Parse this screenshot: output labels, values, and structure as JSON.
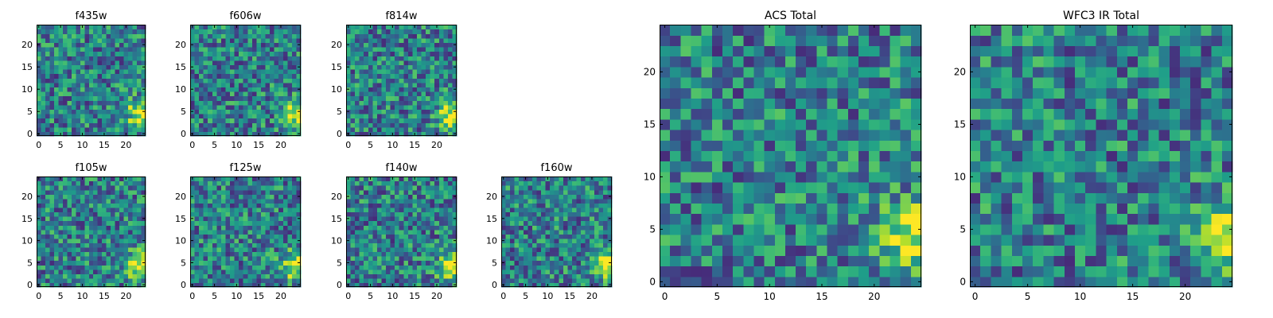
{
  "figure": {
    "colormap": "viridis",
    "background": "#ffffff",
    "grid": false
  },
  "chart_data": [
    {
      "type": "heatmap",
      "title": "f435w",
      "xlabel": "",
      "ylabel": "",
      "seed": 11,
      "hotspot": "bottom-right",
      "xlim": [
        0,
        24
      ],
      "ylim": [
        0,
        24
      ],
      "xticks": [
        0,
        5,
        10,
        15,
        20
      ],
      "yticks": [
        0,
        5,
        10,
        15,
        20
      ],
      "xtick_labels": [
        "0",
        "5",
        "10",
        "15",
        "20"
      ],
      "ytick_labels": [
        "0",
        "5",
        "10",
        "15",
        "20"
      ]
    },
    {
      "type": "heatmap",
      "title": "f606w",
      "xlabel": "",
      "ylabel": "",
      "seed": 23,
      "hotspot": "bottom-right",
      "xlim": [
        0,
        24
      ],
      "ylim": [
        0,
        24
      ],
      "xticks": [
        0,
        5,
        10,
        15,
        20
      ],
      "yticks": [
        0,
        5,
        10,
        15,
        20
      ],
      "xtick_labels": [
        "0",
        "5",
        "10",
        "15",
        "20"
      ],
      "ytick_labels": [
        "0",
        "5",
        "10",
        "15",
        "20"
      ]
    },
    {
      "type": "heatmap",
      "title": "f814w",
      "xlabel": "",
      "ylabel": "",
      "seed": 37,
      "hotspot": "bottom-right",
      "xlim": [
        0,
        24
      ],
      "ylim": [
        0,
        24
      ],
      "xticks": [
        0,
        5,
        10,
        15,
        20
      ],
      "yticks": [
        0,
        5,
        10,
        15,
        20
      ],
      "xtick_labels": [
        "0",
        "5",
        "10",
        "15",
        "20"
      ],
      "ytick_labels": [
        "0",
        "5",
        "10",
        "15",
        "20"
      ]
    },
    {
      "type": "heatmap",
      "title": "f105w",
      "xlabel": "",
      "ylabel": "",
      "seed": 41,
      "hotspot": "bottom-right",
      "xlim": [
        0,
        24
      ],
      "ylim": [
        0,
        24
      ],
      "xticks": [
        0,
        5,
        10,
        15,
        20
      ],
      "yticks": [
        0,
        5,
        10,
        15,
        20
      ],
      "xtick_labels": [
        "0",
        "5",
        "10",
        "15",
        "20"
      ],
      "ytick_labels": [
        "0",
        "5",
        "10",
        "15",
        "20"
      ]
    },
    {
      "type": "heatmap",
      "title": "f125w",
      "xlabel": "",
      "ylabel": "",
      "seed": 53,
      "hotspot": "bottom-right",
      "xlim": [
        0,
        24
      ],
      "ylim": [
        0,
        24
      ],
      "xticks": [
        0,
        5,
        10,
        15,
        20
      ],
      "yticks": [
        0,
        5,
        10,
        15,
        20
      ],
      "xtick_labels": [
        "0",
        "5",
        "10",
        "15",
        "20"
      ],
      "ytick_labels": [
        "0",
        "5",
        "10",
        "15",
        "20"
      ]
    },
    {
      "type": "heatmap",
      "title": "f140w",
      "xlabel": "",
      "ylabel": "",
      "seed": 67,
      "hotspot": "bottom-right",
      "xlim": [
        0,
        24
      ],
      "ylim": [
        0,
        24
      ],
      "xticks": [
        0,
        5,
        10,
        15,
        20
      ],
      "yticks": [
        0,
        5,
        10,
        15,
        20
      ],
      "xtick_labels": [
        "0",
        "5",
        "10",
        "15",
        "20"
      ],
      "ytick_labels": [
        "0",
        "5",
        "10",
        "15",
        "20"
      ]
    },
    {
      "type": "heatmap",
      "title": "f160w",
      "xlabel": "",
      "ylabel": "",
      "seed": 79,
      "hotspot": "bottom-right",
      "xlim": [
        0,
        24
      ],
      "ylim": [
        0,
        24
      ],
      "xticks": [
        0,
        5,
        10,
        15,
        20
      ],
      "yticks": [
        0,
        5,
        10,
        15,
        20
      ],
      "xtick_labels": [
        "0",
        "5",
        "10",
        "15",
        "20"
      ],
      "ytick_labels": [
        "0",
        "5",
        "10",
        "15",
        "20"
      ]
    },
    {
      "type": "heatmap",
      "title": "ACS Total",
      "xlabel": "",
      "ylabel": "",
      "seed": 97,
      "hotspot": "bottom-right",
      "xlim": [
        0,
        24
      ],
      "ylim": [
        0,
        24
      ],
      "xticks": [
        0,
        5,
        10,
        15,
        20
      ],
      "yticks": [
        0,
        5,
        10,
        15,
        20
      ],
      "xtick_labels": [
        "0",
        "5",
        "10",
        "15",
        "20"
      ],
      "ytick_labels": [
        "0",
        "5",
        "10",
        "15",
        "20"
      ]
    },
    {
      "type": "heatmap",
      "title": "WFC3 IR Total",
      "xlabel": "",
      "ylabel": "",
      "seed": 131,
      "hotspot": "bottom-right",
      "xlim": [
        0,
        24
      ],
      "ylim": [
        0,
        24
      ],
      "xticks": [
        0,
        5,
        10,
        15,
        20
      ],
      "yticks": [
        0,
        5,
        10,
        15,
        20
      ],
      "xtick_labels": [
        "0",
        "5",
        "10",
        "15",
        "20"
      ],
      "ytick_labels": [
        "0",
        "5",
        "10",
        "15",
        "20"
      ]
    }
  ]
}
